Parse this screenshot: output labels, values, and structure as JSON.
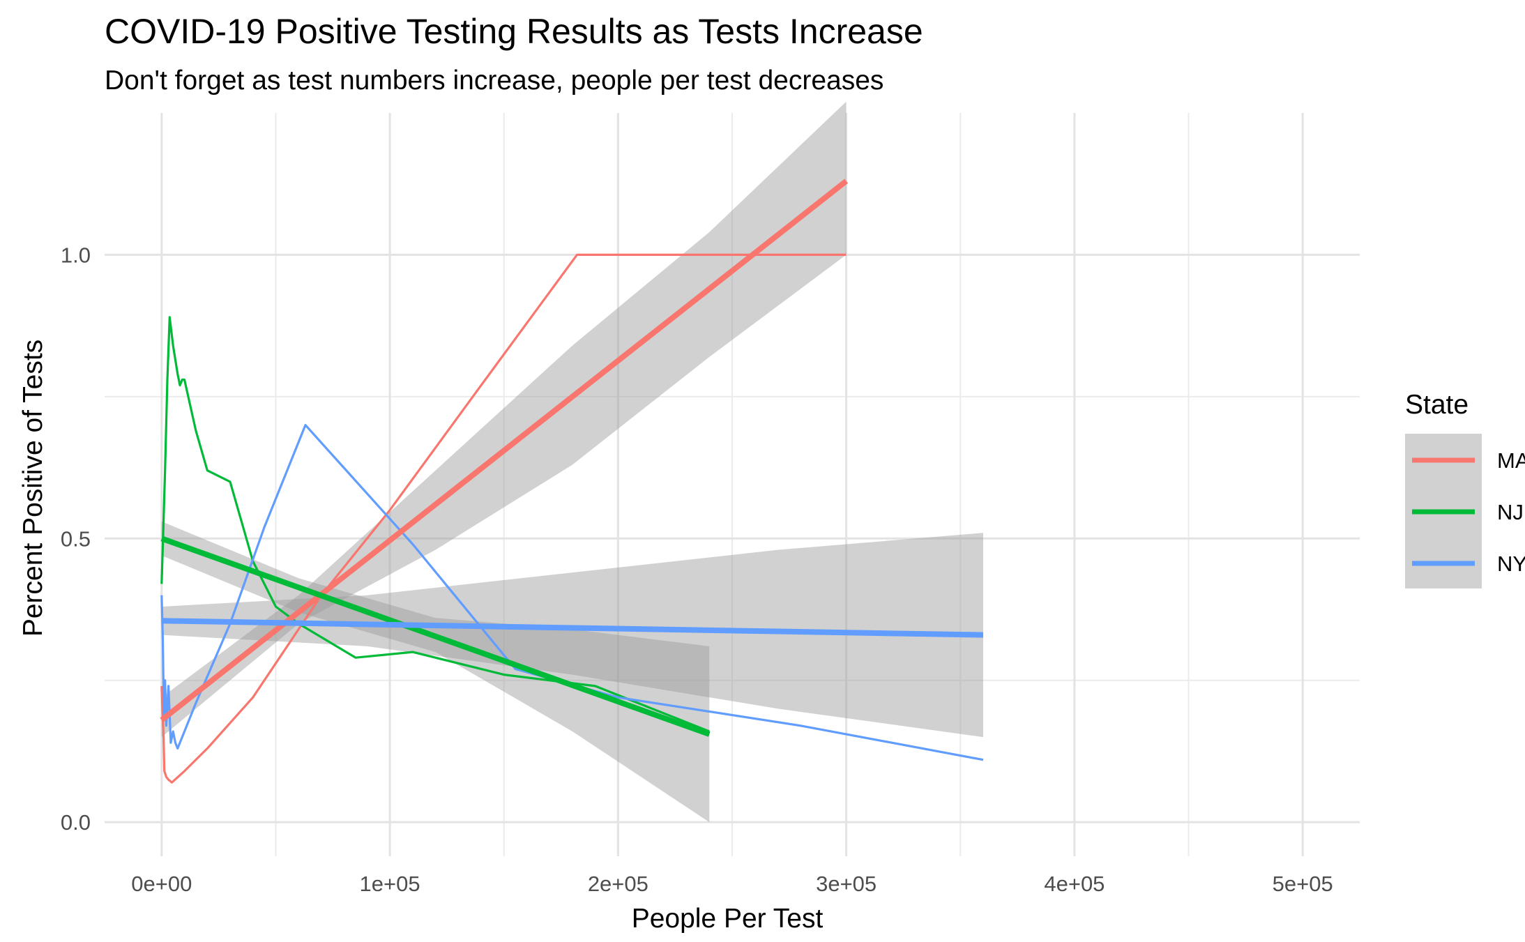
{
  "chart_data": {
    "type": "line",
    "title": "COVID-19 Positive Testing Results as Tests Increase",
    "subtitle": "Don't forget as test numbers increase, people per test decreases",
    "xlabel": "People Per Test",
    "ylabel": "Percent Positive of Tests",
    "xlim": [
      -25000,
      525000
    ],
    "ylim": [
      -0.06,
      1.25
    ],
    "x_ticks": [
      0,
      100000,
      200000,
      300000,
      400000,
      500000
    ],
    "x_tick_labels": [
      "0e+00",
      "1e+05",
      "2e+05",
      "3e+05",
      "4e+05",
      "5e+05"
    ],
    "y_ticks": [
      0.0,
      0.5,
      1.0
    ],
    "y_tick_labels": [
      "0.0",
      "0.5",
      "1.0"
    ],
    "grid": true,
    "legend": {
      "title": "State",
      "position": "right",
      "entries": [
        "MA",
        "NJ",
        "NY"
      ]
    },
    "series": [
      {
        "name": "MA",
        "color": "#F8766D",
        "points": [
          [
            0,
            0.24
          ],
          [
            400,
            0.19
          ],
          [
            800,
            0.16
          ],
          [
            1200,
            0.09
          ],
          [
            2000,
            0.08
          ],
          [
            3000,
            0.075
          ],
          [
            4500,
            0.07
          ],
          [
            10000,
            0.09
          ],
          [
            20000,
            0.13
          ],
          [
            40000,
            0.22
          ],
          [
            70000,
            0.4
          ],
          [
            100000,
            0.55
          ],
          [
            140000,
            0.77
          ],
          [
            182000,
            1.0
          ],
          [
            300000,
            1.0
          ]
        ],
        "trend": {
          "x": [
            0,
            300000
          ],
          "y": [
            0.18,
            1.13
          ]
        },
        "ci": {
          "x": [
            0,
            60000,
            120000,
            180000,
            240000,
            300000
          ],
          "upper": [
            0.22,
            0.4,
            0.62,
            0.84,
            1.04,
            1.27
          ],
          "lower": [
            0.15,
            0.35,
            0.48,
            0.63,
            0.82,
            1.0
          ]
        }
      },
      {
        "name": "NJ",
        "color": "#00BA38",
        "points": [
          [
            0,
            0.42
          ],
          [
            600,
            0.5
          ],
          [
            1500,
            0.62
          ],
          [
            2500,
            0.78
          ],
          [
            3500,
            0.89
          ],
          [
            5000,
            0.84
          ],
          [
            7000,
            0.79
          ],
          [
            8000,
            0.77
          ],
          [
            9000,
            0.78
          ],
          [
            10000,
            0.78
          ],
          [
            15000,
            0.69
          ],
          [
            20000,
            0.62
          ],
          [
            30000,
            0.6
          ],
          [
            40000,
            0.46
          ],
          [
            50000,
            0.38
          ],
          [
            60000,
            0.35
          ],
          [
            85000,
            0.29
          ],
          [
            110000,
            0.3
          ],
          [
            150000,
            0.26
          ],
          [
            190000,
            0.24
          ],
          [
            240000,
            0.16
          ]
        ],
        "trend": {
          "x": [
            0,
            240000
          ],
          "y": [
            0.5,
            0.155
          ]
        },
        "ci": {
          "x": [
            0,
            60000,
            120000,
            180000,
            240000
          ],
          "upper": [
            0.53,
            0.43,
            0.36,
            0.34,
            0.31
          ],
          "lower": [
            0.47,
            0.37,
            0.3,
            0.16,
            0.0
          ]
        }
      },
      {
        "name": "NY",
        "color": "#619CFF",
        "points": [
          [
            0,
            0.4
          ],
          [
            500,
            0.32
          ],
          [
            1000,
            0.18
          ],
          [
            1500,
            0.25
          ],
          [
            2000,
            0.17
          ],
          [
            3000,
            0.24
          ],
          [
            4000,
            0.14
          ],
          [
            5000,
            0.16
          ],
          [
            6000,
            0.14
          ],
          [
            7000,
            0.13
          ],
          [
            15000,
            0.21
          ],
          [
            30000,
            0.35
          ],
          [
            45000,
            0.52
          ],
          [
            63000,
            0.7
          ],
          [
            110000,
            0.49
          ],
          [
            155000,
            0.27
          ],
          [
            200000,
            0.22
          ],
          [
            280000,
            0.17
          ],
          [
            360000,
            0.11
          ]
        ],
        "trend": {
          "x": [
            0,
            360000
          ],
          "y": [
            0.355,
            0.33
          ]
        },
        "ci": {
          "x": [
            0,
            90000,
            180000,
            270000,
            360000
          ],
          "upper": [
            0.38,
            0.4,
            0.44,
            0.48,
            0.51
          ],
          "lower": [
            0.33,
            0.31,
            0.26,
            0.2,
            0.15
          ]
        }
      }
    ]
  }
}
